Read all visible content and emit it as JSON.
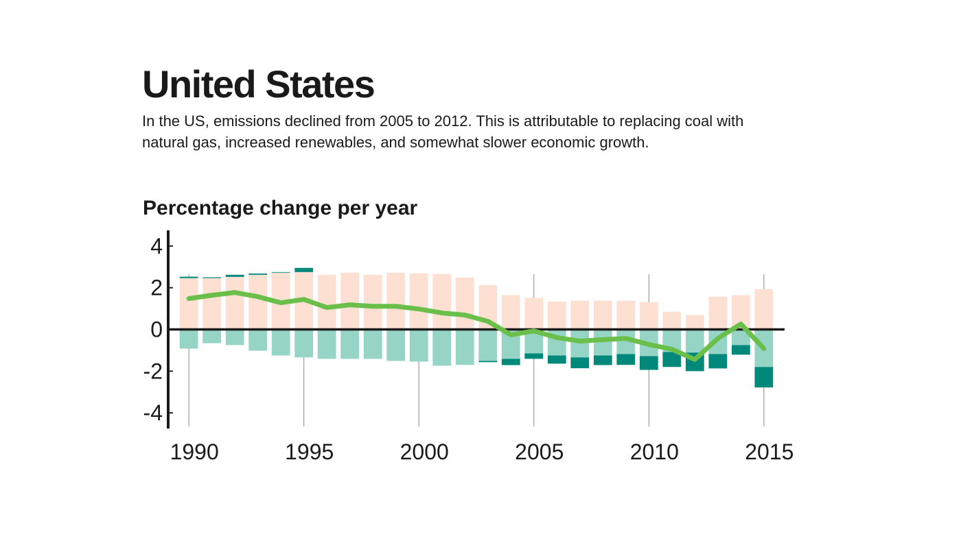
{
  "title": "United States",
  "subtitle": [
    "In the US, emissions declined from 2005 to 2012. This is attributable to replacing coal with",
    "natural gas, increased renewables, and somewhat slower economic growth."
  ],
  "chart_data": {
    "type": "bar",
    "title": "Percentage change per year",
    "x": [
      1990,
      1991,
      1992,
      1993,
      1994,
      1995,
      1996,
      1997,
      1998,
      1999,
      2000,
      2001,
      2002,
      2003,
      2004,
      2005,
      2006,
      2007,
      2008,
      2009,
      2010,
      2011,
      2012,
      2013,
      2014,
      2015
    ],
    "xlim": [
      1989.1,
      2015.9
    ],
    "xticks": [
      1990,
      1995,
      2000,
      2005,
      2010,
      2015
    ],
    "ylim": [
      -4.75,
      4.75
    ],
    "yticks": [
      -4,
      -2,
      0,
      2,
      4
    ],
    "grid": true,
    "series": [
      {
        "color": "#fde0d2",
        "values": [
          2.46,
          2.46,
          2.52,
          2.62,
          2.72,
          2.75,
          2.62,
          2.72,
          2.62,
          2.72,
          2.69,
          2.66,
          2.49,
          2.13,
          1.64,
          1.51,
          1.34,
          1.38,
          1.38,
          1.38,
          1.31,
          0.85,
          0.69,
          1.57,
          1.64,
          1.93
        ]
      },
      {
        "color": "#00897b",
        "values": [
          0.07,
          0.04,
          0.1,
          0.06,
          0.03,
          0.2,
          null,
          null,
          null,
          null,
          null,
          null,
          null,
          null,
          null,
          null,
          null,
          null,
          null,
          null,
          null,
          null,
          null,
          null,
          null,
          null
        ]
      },
      {
        "color": "#96d5c6",
        "values": [
          -0.92,
          -0.66,
          -0.75,
          -1.02,
          -1.25,
          -1.34,
          -1.41,
          -1.41,
          -1.41,
          -1.51,
          -1.54,
          -1.74,
          -1.7,
          -1.51,
          -1.41,
          -1.15,
          -1.25,
          -1.34,
          -1.25,
          -1.18,
          -1.28,
          -1.08,
          -1.11,
          -1.18,
          -0.75,
          -1.8
        ]
      },
      {
        "color": "#00897b",
        "values": [
          null,
          null,
          null,
          null,
          null,
          null,
          null,
          null,
          null,
          null,
          null,
          null,
          null,
          -0.06,
          -0.3,
          -0.26,
          -0.39,
          -0.52,
          -0.46,
          -0.52,
          -0.66,
          -0.72,
          -0.89,
          -0.69,
          -0.46,
          -0.98
        ]
      },
      {
        "type": "line",
        "color": "#6abf4b",
        "values": [
          1.48,
          1.64,
          1.77,
          1.57,
          1.28,
          1.44,
          1.05,
          1.18,
          1.11,
          1.11,
          0.98,
          0.79,
          0.69,
          0.39,
          -0.26,
          -0.07,
          -0.39,
          -0.56,
          -0.49,
          -0.43,
          -0.72,
          -0.95,
          -1.44,
          -0.43,
          0.26,
          -0.92
        ]
      }
    ]
  }
}
